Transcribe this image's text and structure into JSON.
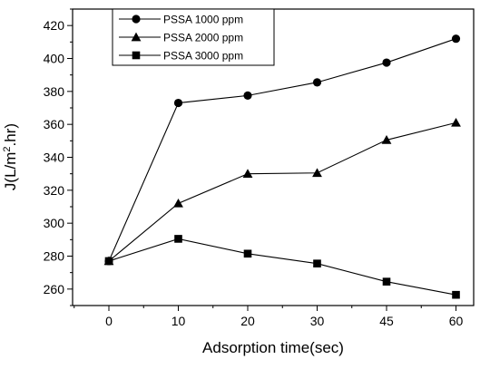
{
  "chart_data": {
    "type": "line",
    "title": "",
    "xlabel": "Adsorption time(sec)",
    "ylabel_main": "J(L/m",
    "ylabel_sup": "2",
    "ylabel_tail": ".hr)",
    "categories": [
      "0",
      "10",
      "20",
      "30",
      "45",
      "60"
    ],
    "yticks": [
      "260",
      "280",
      "300",
      "320",
      "340",
      "360",
      "380",
      "400",
      "420"
    ],
    "ylim": [
      250,
      430
    ],
    "grid": false,
    "legend_position": "top-left",
    "series": [
      {
        "name": "PSSA 1000 ppm",
        "marker": "circle",
        "values": [
          277,
          373,
          377.5,
          385.5,
          397.5,
          412
        ]
      },
      {
        "name": "PSSA 2000 ppm",
        "marker": "triangle",
        "values": [
          277,
          312,
          330,
          330.5,
          350.5,
          361
        ]
      },
      {
        "name": "PSSA 3000 ppm",
        "marker": "square",
        "values": [
          277,
          290.5,
          281.5,
          275.5,
          264.5,
          256.5
        ]
      }
    ]
  }
}
